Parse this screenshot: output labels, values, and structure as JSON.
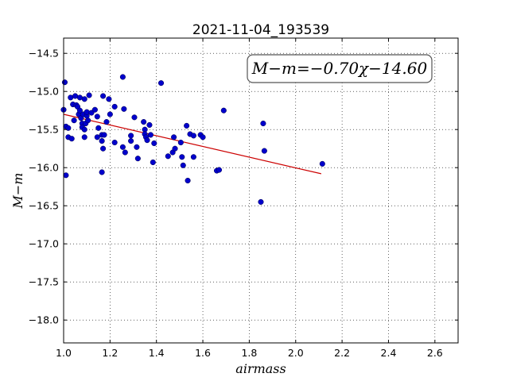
{
  "chart_data": {
    "type": "scatter",
    "title": "2021-11-04_193539",
    "xlabel": "airmass",
    "ylabel": "M−m",
    "xlim": [
      1.0,
      2.7
    ],
    "ylim": [
      -18.3,
      -14.3
    ],
    "x_ticks": [
      1.0,
      1.2,
      1.4,
      1.6,
      1.8,
      2.0,
      2.2,
      2.4,
      2.6
    ],
    "x_tick_labels": [
      "1.0",
      "1.2",
      "1.4",
      "1.6",
      "1.8",
      "2.0",
      "2.2",
      "2.4",
      "2.6"
    ],
    "y_ticks": [
      -14.5,
      -15.0,
      -15.5,
      -16.0,
      -16.5,
      -17.0,
      -17.5,
      -18.0
    ],
    "y_tick_labels": [
      "−14.5",
      "−15.0",
      "−15.5",
      "−16.0",
      "−16.5",
      "−17.0",
      "−17.5",
      "−18.0"
    ],
    "grid": true,
    "annotation": "M−m=−0.70χ−14.60",
    "point_color": "#0000cc",
    "line_color": "#cc0000",
    "fit_line": {
      "x": [
        1.0,
        2.11
      ],
      "y": [
        -15.3,
        -16.08
      ]
    },
    "points": [
      [
        1.005,
        -14.88
      ],
      [
        1.0,
        -15.24
      ],
      [
        1.01,
        -15.46
      ],
      [
        1.02,
        -15.48
      ],
      [
        1.02,
        -15.6
      ],
      [
        1.035,
        -15.62
      ],
      [
        1.01,
        -16.1
      ],
      [
        1.03,
        -15.08
      ],
      [
        1.04,
        -15.17
      ],
      [
        1.045,
        -15.38
      ],
      [
        1.05,
        -15.06
      ],
      [
        1.055,
        -15.18
      ],
      [
        1.06,
        -15.2
      ],
      [
        1.065,
        -15.3
      ],
      [
        1.07,
        -15.08
      ],
      [
        1.07,
        -15.25
      ],
      [
        1.075,
        -15.35
      ],
      [
        1.08,
        -15.42
      ],
      [
        1.08,
        -15.47
      ],
      [
        1.085,
        -15.3
      ],
      [
        1.09,
        -15.1
      ],
      [
        1.09,
        -15.5
      ],
      [
        1.09,
        -15.6
      ],
      [
        1.095,
        -15.42
      ],
      [
        1.1,
        -15.32
      ],
      [
        1.1,
        -15.27
      ],
      [
        1.105,
        -15.38
      ],
      [
        1.11,
        -15.05
      ],
      [
        1.12,
        -15.28
      ],
      [
        1.135,
        -15.24
      ],
      [
        1.145,
        -15.33
      ],
      [
        1.15,
        -15.48
      ],
      [
        1.145,
        -15.6
      ],
      [
        1.165,
        -15.57
      ],
      [
        1.165,
        -15.65
      ],
      [
        1.17,
        -15.75
      ],
      [
        1.175,
        -15.57
      ],
      [
        1.165,
        -16.06
      ],
      [
        1.17,
        -15.06
      ],
      [
        1.185,
        -15.4
      ],
      [
        1.195,
        -15.1
      ],
      [
        1.2,
        -15.3
      ],
      [
        1.22,
        -15.2
      ],
      [
        1.22,
        -15.67
      ],
      [
        1.255,
        -14.81
      ],
      [
        1.255,
        -15.73
      ],
      [
        1.26,
        -15.23
      ],
      [
        1.265,
        -15.8
      ],
      [
        1.29,
        -15.58
      ],
      [
        1.29,
        -15.65
      ],
      [
        1.305,
        -15.34
      ],
      [
        1.315,
        -15.73
      ],
      [
        1.32,
        -15.88
      ],
      [
        1.345,
        -15.4
      ],
      [
        1.35,
        -15.5
      ],
      [
        1.35,
        -15.56
      ],
      [
        1.355,
        -15.6
      ],
      [
        1.36,
        -15.64
      ],
      [
        1.37,
        -15.44
      ],
      [
        1.375,
        -15.57
      ],
      [
        1.385,
        -15.93
      ],
      [
        1.39,
        -15.68
      ],
      [
        1.42,
        -14.89
      ],
      [
        1.45,
        -15.85
      ],
      [
        1.47,
        -15.8
      ],
      [
        1.475,
        -15.6
      ],
      [
        1.48,
        -15.75
      ],
      [
        1.505,
        -15.67
      ],
      [
        1.51,
        -15.86
      ],
      [
        1.515,
        -15.97
      ],
      [
        1.53,
        -15.45
      ],
      [
        1.535,
        -16.17
      ],
      [
        1.545,
        -15.56
      ],
      [
        1.56,
        -15.58
      ],
      [
        1.56,
        -15.86
      ],
      [
        1.59,
        -15.57
      ],
      [
        1.6,
        -15.6
      ],
      [
        1.66,
        -16.04
      ],
      [
        1.67,
        -16.03
      ],
      [
        1.69,
        -15.25
      ],
      [
        1.85,
        -16.45
      ],
      [
        1.86,
        -15.42
      ],
      [
        1.865,
        -15.78
      ],
      [
        2.115,
        -15.95
      ]
    ]
  }
}
